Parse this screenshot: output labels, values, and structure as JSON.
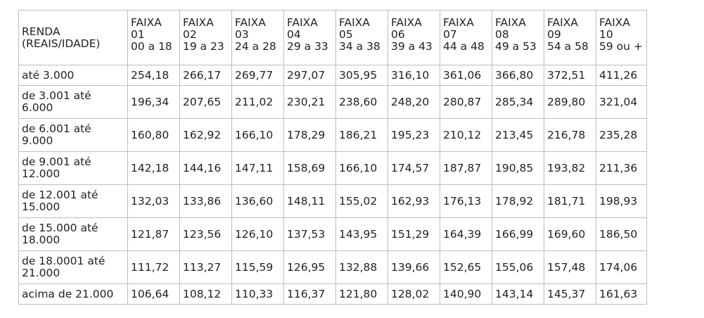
{
  "header": {
    "corner_label": "RENDA (REAIS/IDADE)",
    "faixas": [
      {
        "name": "FAIXA 01",
        "range": "00 a 18"
      },
      {
        "name": "FAIXA 02",
        "range": "19 a 23"
      },
      {
        "name": "FAIXA 03",
        "range": "24 a 28"
      },
      {
        "name": "FAIXA 04",
        "range": "29 a 33"
      },
      {
        "name": "FAIXA 05",
        "range": "34 a 38"
      },
      {
        "name": "FAIXA 06",
        "range": "39 a 43"
      },
      {
        "name": "FAIXA 07",
        "range": "44 a 48"
      },
      {
        "name": "FAIXA 08",
        "range": "49 a 53"
      },
      {
        "name": "FAIXA 09",
        "range": "54 a 58"
      },
      {
        "name": "FAIXA 10",
        "range": "59 ou +"
      }
    ]
  },
  "rows": [
    {
      "label": "até 3.000",
      "values": [
        "254,18",
        "266,17",
        "269,77",
        "297,07",
        "305,95",
        "316,10",
        "361,06",
        "366,80",
        "372,51",
        "411,26"
      ]
    },
    {
      "label": "de 3.001 até 6.000",
      "values": [
        "196,34",
        "207,65",
        "211,02",
        "230,21",
        "238,60",
        "248,20",
        "280,87",
        "285,34",
        "289,80",
        "321,04"
      ]
    },
    {
      "label": "de 6.001 até 9.000",
      "values": [
        "160,80",
        "162,92",
        "166,10",
        "178,29",
        "186,21",
        "195,23",
        "210,12",
        "213,45",
        "216,78",
        "235,28"
      ]
    },
    {
      "label": "de 9.001 até 12.000",
      "values": [
        "142,18",
        "144,16",
        "147,11",
        "158,69",
        "166,10",
        "174,57",
        "187,87",
        "190,85",
        "193,82",
        "211,36"
      ]
    },
    {
      "label": "de 12.001 até 15.000",
      "values": [
        "132,03",
        "133,86",
        "136,60",
        "148,11",
        "155,02",
        "162,93",
        "176,13",
        "178,92",
        "181,71",
        "198,93"
      ]
    },
    {
      "label": "de 15.000 até 18.000",
      "values": [
        "121,87",
        "123,56",
        "126,10",
        "137,53",
        "143,95",
        "151,29",
        "164,39",
        "166,99",
        "169,60",
        "186,50"
      ]
    },
    {
      "label": "de 18.0001 até 21.000",
      "values": [
        "111,72",
        "113,27",
        "115,59",
        "126,95",
        "132,88",
        "139,66",
        "152,65",
        "155,06",
        "157,48",
        "174,06"
      ]
    },
    {
      "label": "acima de 21.000",
      "values": [
        "106,64",
        "108,12",
        "110,33",
        "116,37",
        "121,80",
        "128,02",
        "140,90",
        "143,14",
        "145,37",
        "161,63"
      ]
    }
  ]
}
